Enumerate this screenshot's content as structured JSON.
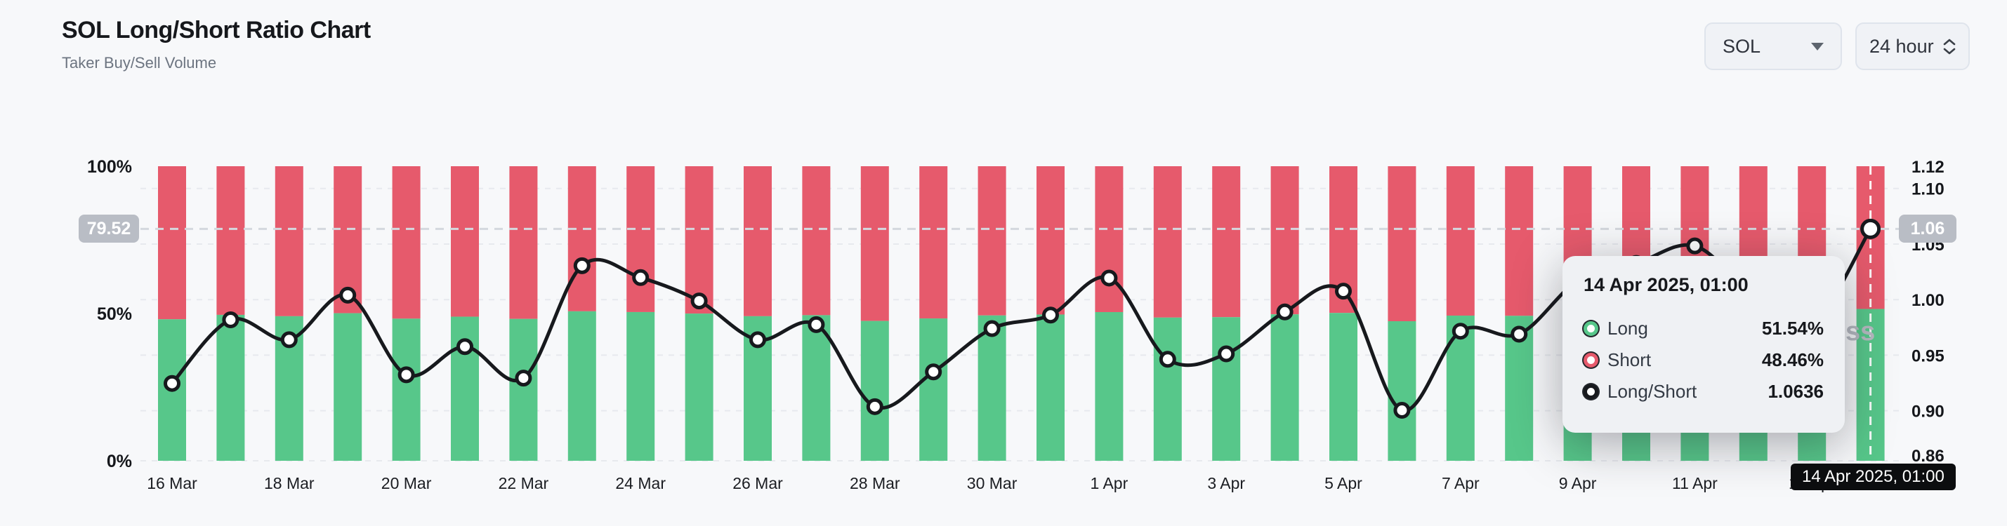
{
  "header": {
    "title": "SOL Long/Short Ratio Chart",
    "subtitle": "Taker Buy/Sell Volume"
  },
  "controls": {
    "symbol_select": {
      "value": "SOL",
      "icon": "caret-down-icon"
    },
    "interval_select": {
      "value": "24 hour",
      "icon": "up-down-chevrons-icon"
    }
  },
  "watermark_visible_text": "ss",
  "colors": {
    "long": "#57C78A",
    "short": "#E65A6C",
    "line": "#17191d",
    "grid": "#e7e9ee",
    "crosshair": "#d4d8de",
    "crosshair_badge": "#b9bdc5",
    "x_badge": "#0c0d0f"
  },
  "chart_data": {
    "type": "bar+line",
    "note": "stacked 100% bars (Long bottom / Short top, left % axis) with Long/Short ratio line on right axis",
    "categories": [
      "16 Mar",
      "17 Mar",
      "18 Mar",
      "19 Mar",
      "20 Mar",
      "21 Mar",
      "22 Mar",
      "23 Mar",
      "24 Mar",
      "25 Mar",
      "26 Mar",
      "27 Mar",
      "28 Mar",
      "29 Mar",
      "30 Mar",
      "31 Mar",
      "1 Apr",
      "2 Apr",
      "3 Apr",
      "4 Apr",
      "5 Apr",
      "6 Apr",
      "7 Apr",
      "8 Apr",
      "9 Apr",
      "10 Apr",
      "11 Apr",
      "12 Apr",
      "13 Apr",
      "14 Apr"
    ],
    "series": [
      {
        "name": "Long",
        "type": "bar",
        "unit": "%",
        "axis": "left",
        "values": [
          48.04,
          49.54,
          49.08,
          50.1,
          48.25,
          48.92,
          48.17,
          50.75,
          50.49,
          49.97,
          49.08,
          49.43,
          47.47,
          48.32,
          49.34,
          49.65,
          50.48,
          48.62,
          48.75,
          49.72,
          50.19,
          47.38,
          49.28,
          49.21,
          50.42,
          50.8,
          51.18,
          50.1,
          49.46,
          51.54
        ]
      },
      {
        "name": "Short",
        "type": "bar",
        "unit": "%",
        "axis": "left",
        "values": [
          51.96,
          50.46,
          50.92,
          49.9,
          51.75,
          51.08,
          51.83,
          49.25,
          49.51,
          50.03,
          50.92,
          50.57,
          52.53,
          51.68,
          50.66,
          50.35,
          49.52,
          51.38,
          51.25,
          50.28,
          49.81,
          52.62,
          50.72,
          50.79,
          49.58,
          49.2,
          48.82,
          49.9,
          50.54,
          48.46
        ]
      },
      {
        "name": "Long/Short",
        "type": "line",
        "axis": "right",
        "values": [
          0.9246,
          0.9818,
          0.9639,
          1.004,
          0.9324,
          0.9577,
          0.9294,
          1.0305,
          1.0198,
          0.9988,
          0.9639,
          0.9775,
          0.9037,
          0.935,
          0.9739,
          0.9861,
          1.0194,
          0.9463,
          0.9512,
          0.9889,
          1.0076,
          0.9004,
          0.9716,
          0.9689,
          1.0169,
          1.0325,
          1.0483,
          1.004,
          0.9786,
          1.0636
        ]
      }
    ],
    "x_axis": {
      "tick_labels": [
        "16 Mar",
        "18 Mar",
        "20 Mar",
        "22 Mar",
        "24 Mar",
        "26 Mar",
        "28 Mar",
        "30 Mar",
        "1 Apr",
        "3 Apr",
        "5 Apr",
        "7 Apr",
        "9 Apr",
        "11 Apr",
        "13 Apr"
      ]
    },
    "left_axis": {
      "tick_labels": [
        "100%",
        "50%",
        "0%"
      ],
      "range": [
        0,
        100
      ]
    },
    "right_axis": {
      "tick_labels": [
        "1.12",
        "1.10",
        "1.05",
        "1.00",
        "0.95",
        "0.90",
        "0.86"
      ],
      "tick_values": [
        1.12,
        1.1,
        1.05,
        1.0,
        0.95,
        0.9,
        0.86
      ],
      "range": [
        0.855,
        1.12
      ]
    },
    "grid": true,
    "legend_position": "none",
    "crosshair": {
      "day_index": 29,
      "ratio": 1.0636,
      "left_value_label": "79.52",
      "right_value_label": "1.06",
      "date_label": "14 Apr 2025, 01:00"
    }
  },
  "tooltip": {
    "title": "14 Apr 2025, 01:00",
    "rows": [
      {
        "label": "Long",
        "value": "51.54%",
        "marker_color": "#57C78A"
      },
      {
        "label": "Short",
        "value": "48.46%",
        "marker_color": "#E65A6C"
      },
      {
        "label": "Long/Short",
        "value": "1.0636",
        "marker_color": "#17191d"
      }
    ]
  }
}
